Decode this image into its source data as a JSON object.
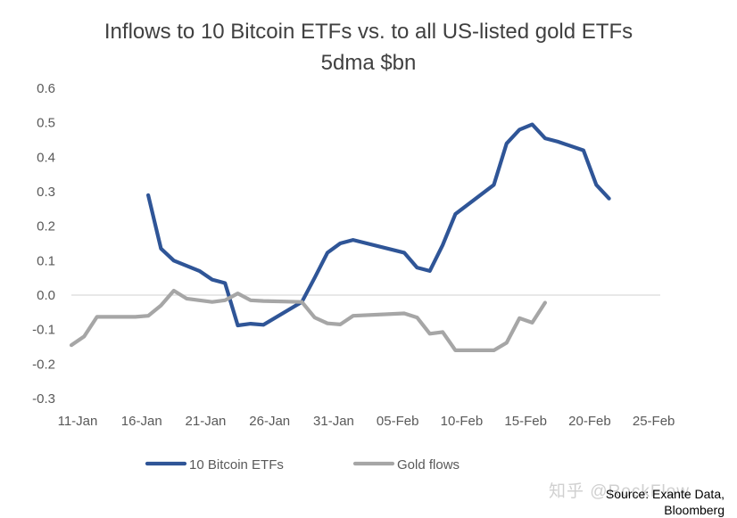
{
  "chart_data": {
    "type": "line",
    "title": "Inflows to 10 Bitcoin ETFs vs. to all US-listed gold ETFs",
    "subtitle": "5dma $bn",
    "ylim": [
      -0.3,
      0.6
    ],
    "yticks": [
      "0.6",
      "0.5",
      "0.4",
      "0.3",
      "0.2",
      "0.1",
      "0.0",
      "-0.1",
      "-0.2",
      "-0.3"
    ],
    "ytick_values": [
      0.6,
      0.5,
      0.4,
      0.3,
      0.2,
      0.1,
      0.0,
      -0.1,
      -0.2,
      -0.3
    ],
    "xticks": [
      "11-Jan",
      "16-Jan",
      "21-Jan",
      "26-Jan",
      "31-Jan",
      "05-Feb",
      "10-Feb",
      "15-Feb",
      "20-Feb",
      "25-Feb"
    ],
    "xtick_days": [
      0,
      5,
      10,
      15,
      20,
      25,
      30,
      35,
      40,
      45
    ],
    "x_unit": "days from 11-Jan",
    "grid": false,
    "zero_line": true,
    "legend_position": "bottom",
    "series": [
      {
        "name": "10 Bitcoin ETFs",
        "color": "#2f5597",
        "x": [
          6,
          7,
          8,
          10,
          11,
          12,
          13,
          14,
          15,
          18,
          19,
          20,
          21,
          22,
          26,
          27,
          28,
          29,
          30,
          33,
          34,
          35,
          36,
          37,
          38,
          40,
          41,
          42
        ],
        "values": [
          0.29,
          0.135,
          0.1,
          0.07,
          0.045,
          0.035,
          -0.088,
          -0.083,
          -0.086,
          -0.02,
          0.05,
          0.123,
          0.15,
          0.16,
          0.123,
          0.08,
          0.07,
          0.145,
          0.235,
          0.32,
          0.44,
          0.48,
          0.495,
          0.455,
          0.445,
          0.42,
          0.32,
          0.28
        ]
      },
      {
        "name": "Gold flows",
        "color": "#a6a6a6",
        "x": [
          0,
          1,
          2,
          3,
          5,
          6,
          7,
          8,
          9,
          11,
          12,
          13,
          14,
          15,
          18,
          19,
          20,
          21,
          22,
          26,
          27,
          28,
          29,
          30,
          31,
          32,
          33,
          34,
          35,
          36,
          37
        ],
        "values": [
          -0.145,
          -0.12,
          -0.063,
          -0.063,
          -0.063,
          -0.06,
          -0.03,
          0.013,
          -0.01,
          -0.02,
          -0.015,
          0.005,
          -0.015,
          -0.017,
          -0.02,
          -0.065,
          -0.082,
          -0.085,
          -0.06,
          -0.053,
          -0.065,
          -0.112,
          -0.107,
          -0.16,
          -0.16,
          -0.16,
          -0.16,
          -0.138,
          -0.067,
          -0.08,
          -0.022
        ]
      }
    ]
  },
  "source_line1": "Source: Exante Data,",
  "source_line2": "Bloomberg",
  "watermark": "知乎 @RockFlow"
}
